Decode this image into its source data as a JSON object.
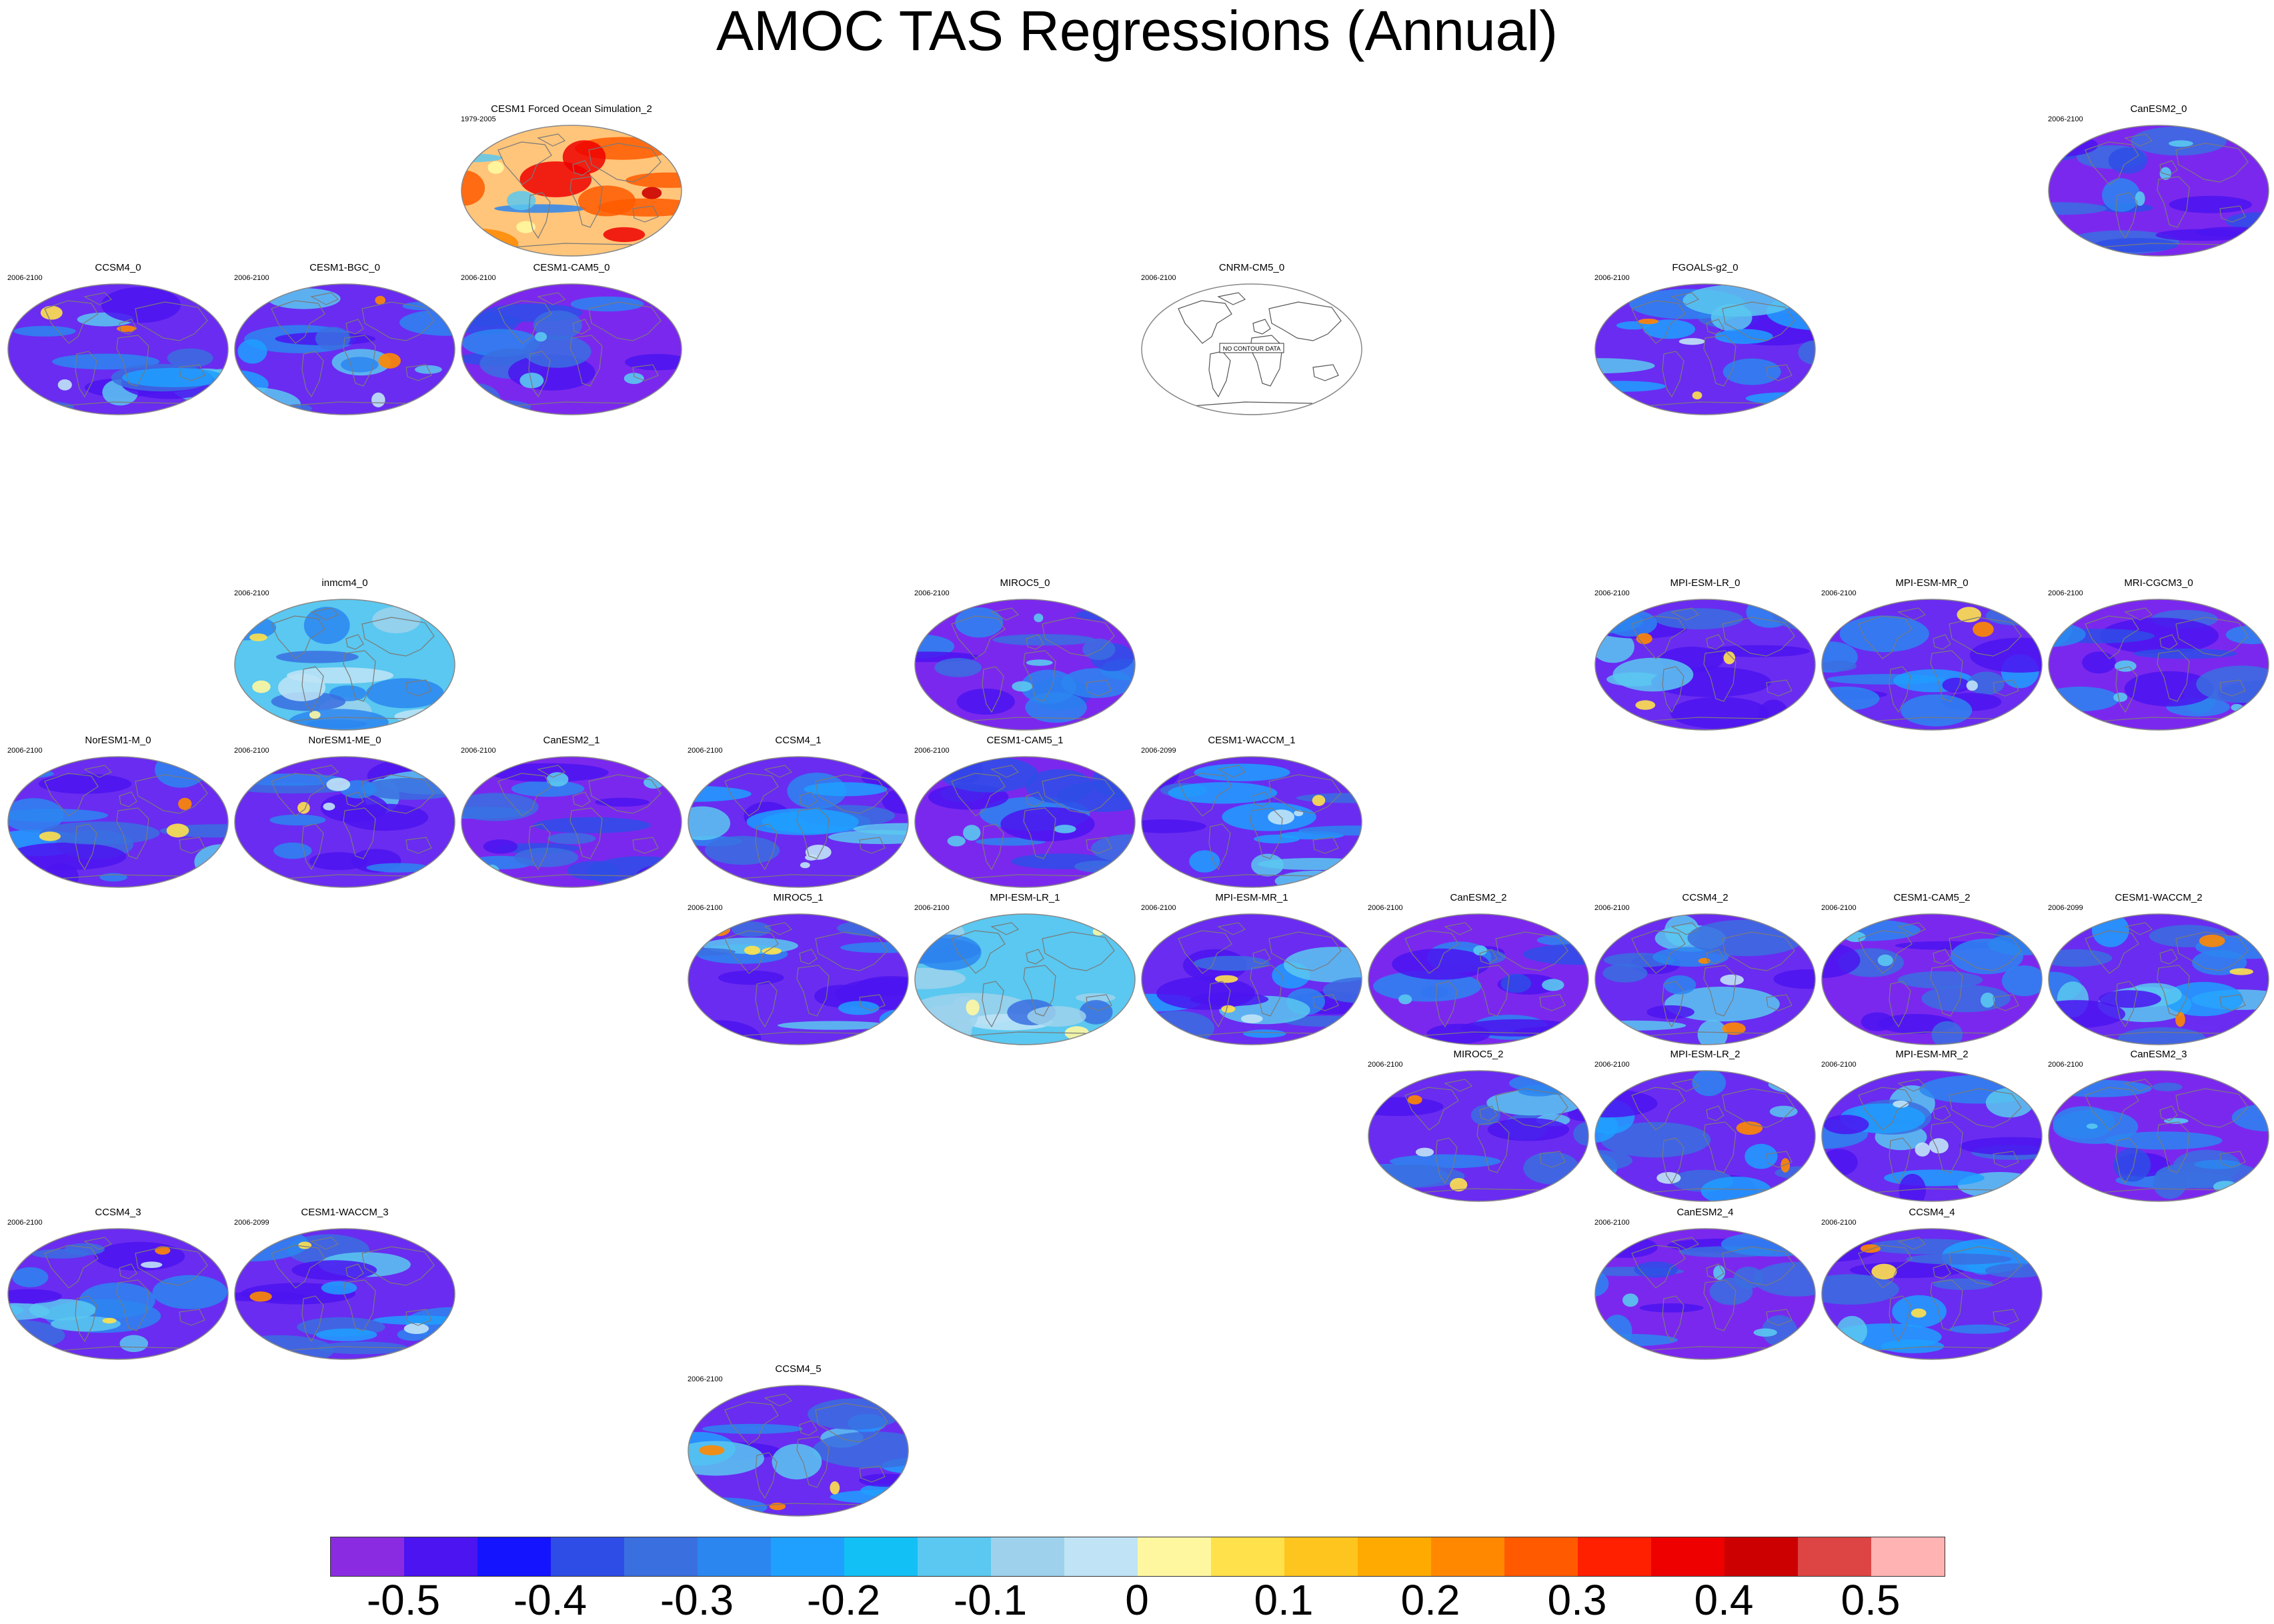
{
  "title": "AMOC TAS Regressions (Annual)",
  "colorbar": {
    "colors": [
      "#8a2be2",
      "#4b14f0",
      "#1414ff",
      "#2e4de6",
      "#3a6fe0",
      "#2b86f0",
      "#1fa0ff",
      "#12c0f5",
      "#5ac8f0",
      "#9ed2ec",
      "#c0e4f6",
      "#fff7a0",
      "#ffe14b",
      "#ffc51f",
      "#ffaa00",
      "#ff8800",
      "#ff5a00",
      "#ff2000",
      "#ee0000",
      "#cc0000",
      "#dd4444",
      "#ffb3b3"
    ],
    "labels": [
      "-0.5",
      "-0.4",
      "-0.3",
      "-0.2",
      "-0.1",
      "0",
      "0.1",
      "0.2",
      "0.3",
      "0.4",
      "0.5"
    ]
  },
  "panels": [
    {
      "name": "CESM1 Forced Ocean Simulation_2",
      "years": "1979-2005",
      "style": "obs"
    },
    {
      "name": "CanESM2_0",
      "years": "2006-2100",
      "style": "cool"
    },
    {
      "name": "CCSM4_0",
      "years": "2006-2100",
      "style": "mixed"
    },
    {
      "name": "CESM1-BGC_0",
      "years": "2006-2100",
      "style": "mixed"
    },
    {
      "name": "CESM1-CAM5_0",
      "years": "2006-2100",
      "style": "cool"
    },
    {
      "name": "CNRM-CM5_0",
      "years": "2006-2100",
      "style": "nodata",
      "note": "NO CONTOUR DATA"
    },
    {
      "name": "FGOALS-g2_0",
      "years": "2006-2100",
      "style": "mixed"
    },
    {
      "name": "inmcm4_0",
      "years": "2006-2100",
      "style": "light"
    },
    {
      "name": "MIROC5_0",
      "years": "2006-2100",
      "style": "cool"
    },
    {
      "name": "MPI-ESM-LR_0",
      "years": "2006-2100",
      "style": "mixed"
    },
    {
      "name": "MPI-ESM-MR_0",
      "years": "2006-2100",
      "style": "mixed"
    },
    {
      "name": "MRI-CGCM3_0",
      "years": "2006-2100",
      "style": "cool"
    },
    {
      "name": "NorESM1-M_0",
      "years": "2006-2100",
      "style": "mixed"
    },
    {
      "name": "NorESM1-ME_0",
      "years": "2006-2100",
      "style": "mixed"
    },
    {
      "name": "CanESM2_1",
      "years": "2006-2100",
      "style": "cool"
    },
    {
      "name": "CCSM4_1",
      "years": "2006-2100",
      "style": "mixed"
    },
    {
      "name": "CESM1-CAM5_1",
      "years": "2006-2100",
      "style": "cool"
    },
    {
      "name": "CESM1-WACCM_1",
      "years": "2006-2099",
      "style": "mixed"
    },
    {
      "name": "MIROC5_1",
      "years": "2006-2100",
      "style": "mixed"
    },
    {
      "name": "MPI-ESM-LR_1",
      "years": "2006-2100",
      "style": "light"
    },
    {
      "name": "MPI-ESM-MR_1",
      "years": "2006-2100",
      "style": "mixed"
    },
    {
      "name": "CanESM2_2",
      "years": "2006-2100",
      "style": "cool"
    },
    {
      "name": "CCSM4_2",
      "years": "2006-2100",
      "style": "mixed"
    },
    {
      "name": "CESM1-CAM5_2",
      "years": "2006-2100",
      "style": "cool"
    },
    {
      "name": "CESM1-WACCM_2",
      "years": "2006-2099",
      "style": "mixed"
    },
    {
      "name": "MIROC5_2",
      "years": "2006-2100",
      "style": "mixed"
    },
    {
      "name": "MPI-ESM-LR_2",
      "years": "2006-2100",
      "style": "mixed"
    },
    {
      "name": "MPI-ESM-MR_2",
      "years": "2006-2100",
      "style": "mixed"
    },
    {
      "name": "CanESM2_3",
      "years": "2006-2100",
      "style": "cool"
    },
    {
      "name": "CCSM4_3",
      "years": "2006-2100",
      "style": "mixed"
    },
    {
      "name": "CESM1-WACCM_3",
      "years": "2006-2099",
      "style": "mixed"
    },
    {
      "name": "CanESM2_4",
      "years": "2006-2100",
      "style": "cool"
    },
    {
      "name": "CCSM4_4",
      "years": "2006-2100",
      "style": "mixed"
    },
    {
      "name": "CCSM4_5",
      "years": "2006-2100",
      "style": "mixed"
    }
  ]
}
